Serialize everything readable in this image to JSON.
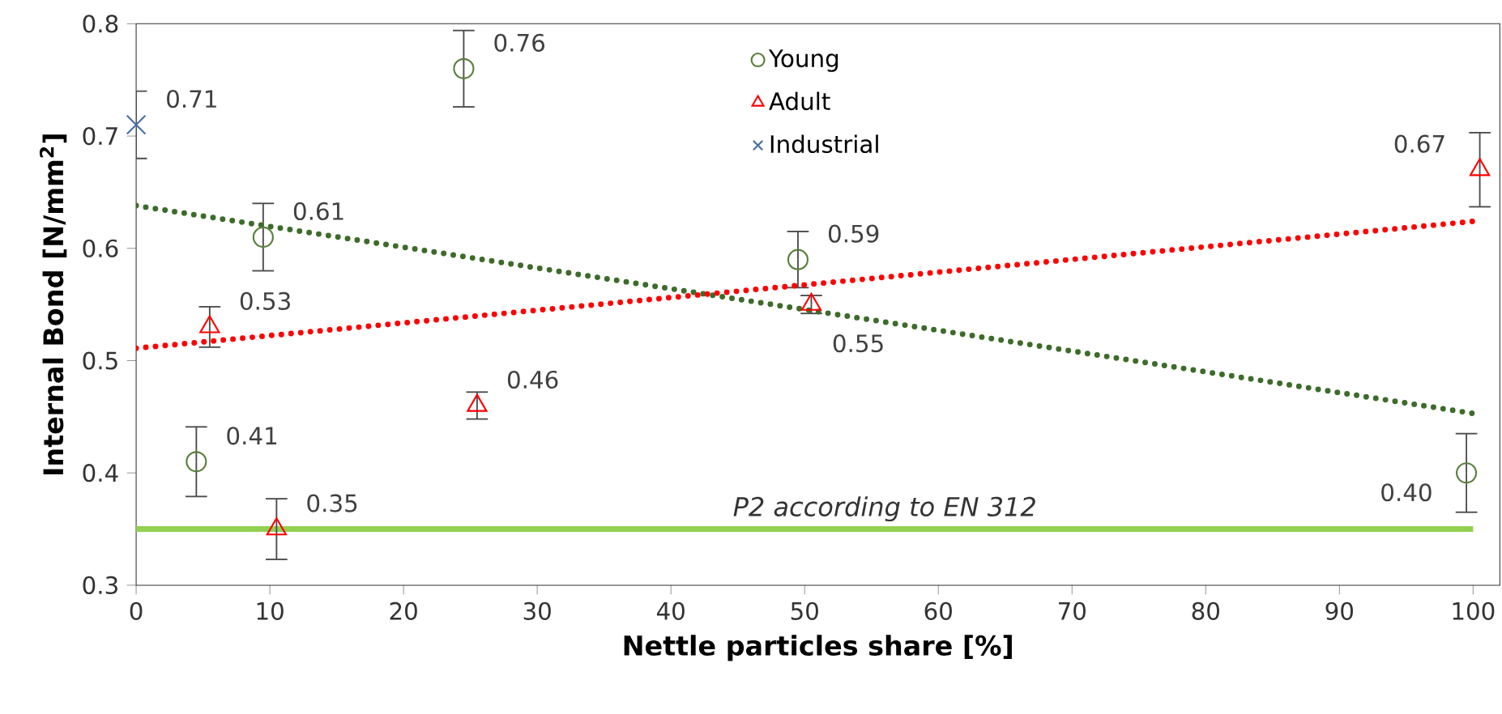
{
  "chart_data": {
    "type": "scatter",
    "xlabel": "Nettle particles share [%]",
    "ylabel": "Internal Bond [N/mm$^{2}$]",
    "xlim": [
      0,
      102
    ],
    "ylim": [
      0.3,
      0.8
    ],
    "xticks": [
      0,
      10,
      20,
      30,
      40,
      50,
      60,
      70,
      80,
      90,
      100
    ],
    "yticks": [
      {
        "value": 0.3,
        "label": "0.3"
      },
      {
        "value": 0.4,
        "label": "0.4"
      },
      {
        "value": 0.5,
        "label": "0.5"
      },
      {
        "value": 0.6,
        "label": "0.6"
      },
      {
        "value": 0.7,
        "label": "0.7"
      },
      {
        "value": 0.8,
        "label": "0.8"
      }
    ],
    "grid": false,
    "legend": "top",
    "series": [
      {
        "name": "Young",
        "color": "#5a7f3c",
        "marker": "circle",
        "x": [
          4.5,
          9.5,
          24.5,
          49.5,
          99.5
        ],
        "values": [
          0.41,
          0.61,
          0.76,
          0.59,
          0.4
        ],
        "value_labels": [
          "0.41",
          "0.61",
          "0.76",
          "0.59",
          "0.40"
        ],
        "errors": [
          0.031,
          0.03,
          0.034,
          0.025,
          0.035
        ]
      },
      {
        "name": "Adult",
        "color": "#ff0000",
        "marker": "triangle",
        "x": [
          5.5,
          10.5,
          25.5,
          50.5,
          100.5
        ],
        "values": [
          0.53,
          0.35,
          0.46,
          0.55,
          0.67
        ],
        "value_labels": [
          "0.53",
          "0.35",
          "0.46",
          "0.55",
          "0.67"
        ],
        "errors": [
          0.018,
          0.027,
          0.012,
          0.008,
          0.033
        ]
      },
      {
        "name": "Industrial",
        "color": "#4a6fa5",
        "marker": "cross",
        "x": [
          0
        ],
        "values": [
          0.71
        ],
        "value_labels": [
          "0.71"
        ],
        "errors": [
          0.03
        ]
      },
      {
        "type": "line",
        "color": "#3d6b2a",
        "line_style": "dotted",
        "marker": "none",
        "x": [
          0,
          100
        ],
        "values": [
          0.638,
          0.453
        ]
      },
      {
        "type": "line",
        "color": "#ff0000",
        "line_style": "dotted",
        "marker": "none",
        "x": [
          0,
          100
        ],
        "values": [
          0.511,
          0.624
        ]
      }
    ],
    "ref_lines": [
      {
        "axis": "y",
        "value": 0.35,
        "label": "P2 according to EN 312",
        "color": "#92d050"
      }
    ]
  }
}
